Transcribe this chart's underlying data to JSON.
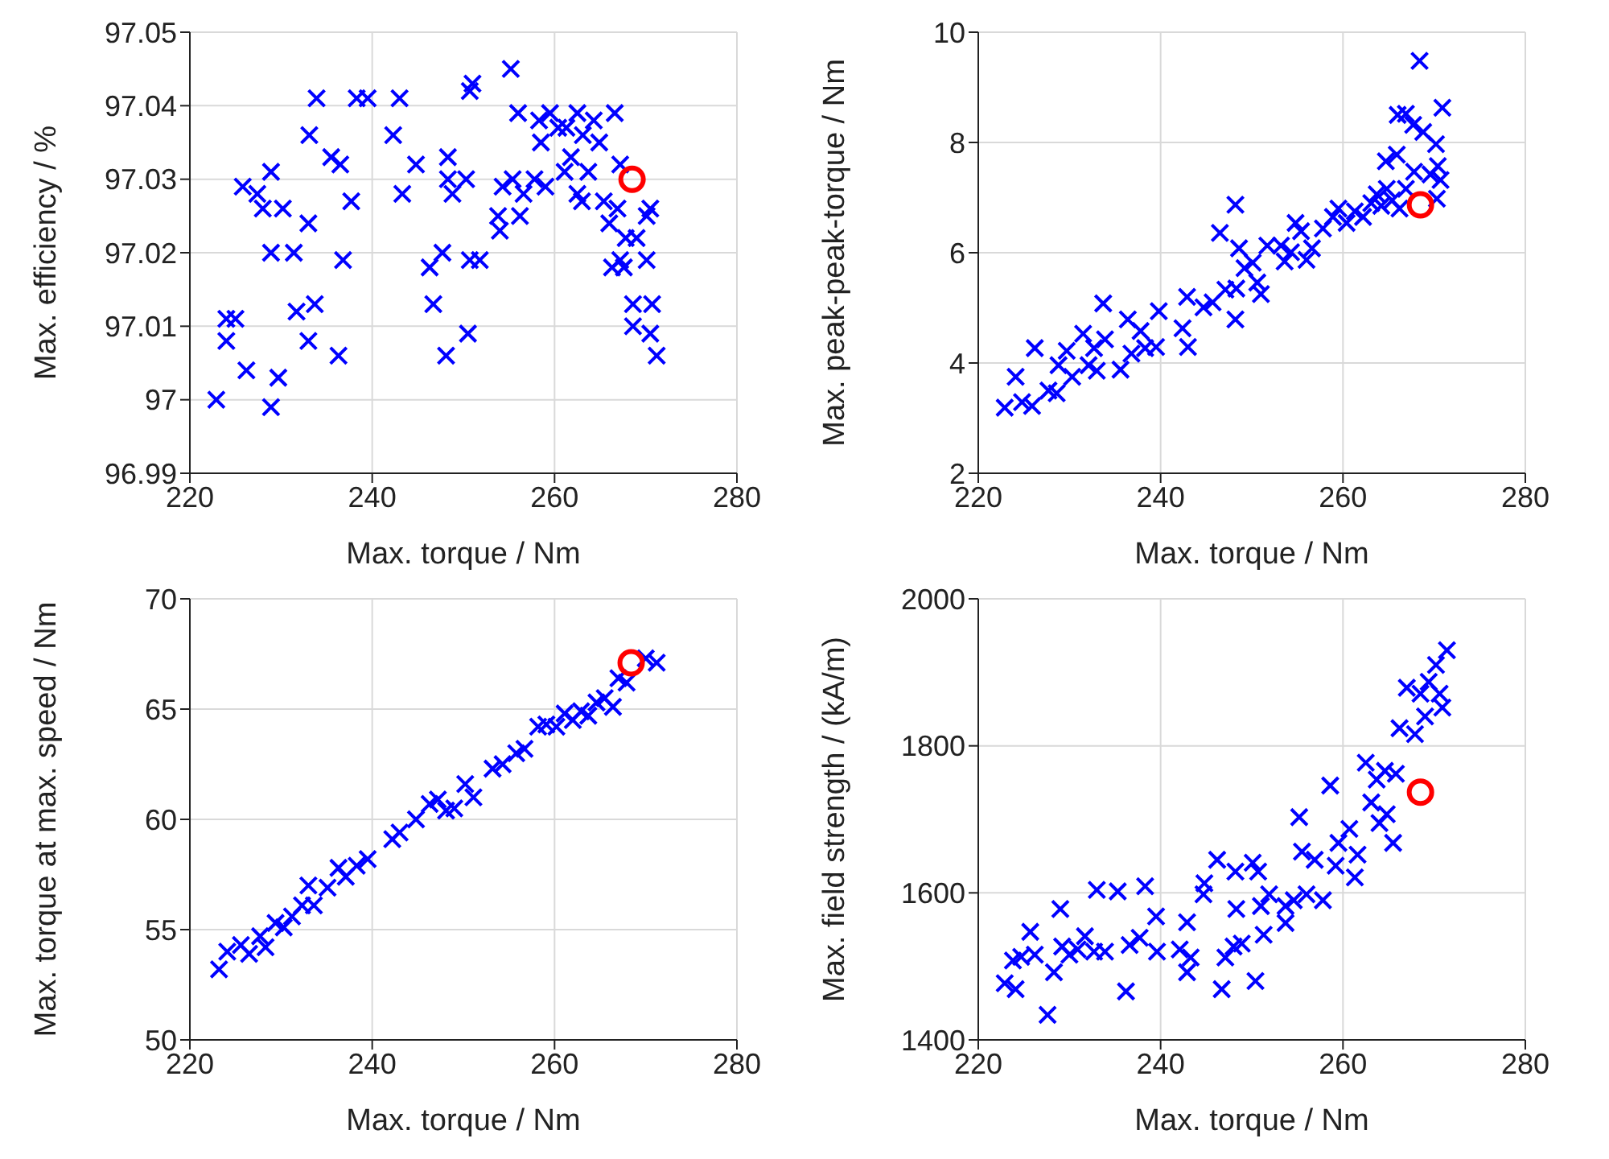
{
  "chart_data": [
    {
      "type": "scatter",
      "xlabel": "Max. torque / Nm",
      "ylabel": "Max. efficiency / %",
      "xlim": [
        220,
        280
      ],
      "xticks": [
        220,
        240,
        260,
        280
      ],
      "ylim": [
        96.99,
        97.05
      ],
      "yticks": [
        96.99,
        97,
        97.01,
        97.02,
        97.03,
        97.04,
        97.05
      ],
      "grid": true,
      "series": [
        {
          "color": "#0000ff",
          "marker": "cross",
          "x": [
            222.9,
            224.0,
            225.0,
            224.0,
            226.2,
            225.8,
            227.4,
            228.0,
            228.9,
            230.2,
            228.9,
            228.9,
            229.7,
            231.4,
            231.7,
            233.0,
            233.0,
            233.1,
            233.7,
            233.9,
            235.5,
            236.5,
            236.3,
            236.8,
            237.7,
            238.3,
            239.5,
            242.3,
            243.0,
            243.3,
            244.8,
            246.3,
            246.7,
            247.7,
            248.3,
            248.3,
            248.8,
            248.1,
            250.3,
            250.5,
            250.7,
            251.8,
            250.7,
            251.0,
            255.2,
            256.0,
            254.3,
            255.4,
            253.8,
            254.0,
            256.2,
            256.6,
            257.8,
            259.0,
            258.5,
            259.5,
            258.3,
            260.4,
            261.3,
            262.5,
            263.1,
            264.3,
            264.9,
            261.1,
            261.8,
            263.7,
            262.5,
            263.0,
            266.6,
            267.2,
            265.4,
            266.9,
            266.0,
            267.8,
            269.0,
            270.5,
            270.1,
            270.1,
            267.2,
            266.3,
            267.6,
            268.6,
            270.7,
            268.6,
            270.5,
            271.2
          ],
          "values": [
            97.0,
            97.011,
            97.011,
            97.008,
            97.004,
            97.029,
            97.028,
            97.026,
            97.031,
            97.026,
            97.02,
            96.999,
            97.003,
            97.02,
            97.012,
            97.008,
            97.024,
            97.036,
            97.013,
            97.041,
            97.033,
            97.032,
            97.006,
            97.019,
            97.027,
            97.041,
            97.041,
            97.036,
            97.041,
            97.028,
            97.032,
            97.018,
            97.013,
            97.02,
            97.033,
            97.03,
            97.028,
            97.006,
            97.03,
            97.009,
            97.019,
            97.019,
            97.042,
            97.043,
            97.045,
            97.039,
            97.029,
            97.03,
            97.025,
            97.023,
            97.025,
            97.028,
            97.03,
            97.029,
            97.035,
            97.039,
            97.038,
            97.037,
            97.037,
            97.039,
            97.036,
            97.038,
            97.035,
            97.031,
            97.033,
            97.031,
            97.028,
            97.027,
            97.039,
            97.032,
            97.027,
            97.026,
            97.024,
            97.022,
            97.022,
            97.026,
            97.025,
            97.019,
            97.019,
            97.018,
            97.018,
            97.013,
            97.013,
            97.01,
            97.009,
            97.006
          ]
        },
        {
          "color": "#ff0000",
          "marker": "circle",
          "x": [
            268.5
          ],
          "values": [
            97.03
          ]
        }
      ]
    },
    {
      "type": "scatter",
      "xlabel": "Max. torque / Nm",
      "ylabel": "Max. peak-peak-torque / Nm",
      "xlim": [
        220,
        280
      ],
      "xticks": [
        220,
        240,
        260,
        280
      ],
      "ylim": [
        2,
        10
      ],
      "yticks": [
        2,
        4,
        6,
        8,
        10
      ],
      "grid": true,
      "series": [
        {
          "color": "#0000ff",
          "marker": "cross",
          "x": [
            222.9,
            224.1,
            224.8,
            225.9,
            226.2,
            227.7,
            228.6,
            228.8,
            229.7,
            230.3,
            231.5,
            232.1,
            233.0,
            232.7,
            233.7,
            233.9,
            235.6,
            236.4,
            236.8,
            237.8,
            238.3,
            239.5,
            239.8,
            242.4,
            242.9,
            243.0,
            244.7,
            245.7,
            246.5,
            247.1,
            248.2,
            248.2,
            248.3,
            248.6,
            249.2,
            250.1,
            250.6,
            251.0,
            251.7,
            253.2,
            253.6,
            254.3,
            254.8,
            255.4,
            256.0,
            256.6,
            257.8,
            258.9,
            259.5,
            260.4,
            261.3,
            262.2,
            263.1,
            263.7,
            264.2,
            264.8,
            265.4,
            264.7,
            265.9,
            266.0,
            266.9,
            267.7,
            266.2,
            266.9,
            267.8,
            268.4,
            268.8,
            270.2,
            270.9,
            269.6,
            270.4,
            270.7,
            270.3
          ],
          "values": [
            3.19,
            3.75,
            3.29,
            3.22,
            4.27,
            3.5,
            3.45,
            3.96,
            4.22,
            3.75,
            4.53,
            3.96,
            3.86,
            4.27,
            5.08,
            4.43,
            3.88,
            4.79,
            4.17,
            4.58,
            4.27,
            4.29,
            4.94,
            4.63,
            5.2,
            4.29,
            5.01,
            5.1,
            6.36,
            5.33,
            6.87,
            4.79,
            5.35,
            6.08,
            5.72,
            5.82,
            5.46,
            5.25,
            6.13,
            6.13,
            5.84,
            6.01,
            6.54,
            6.39,
            5.87,
            6.08,
            6.44,
            6.65,
            6.8,
            6.54,
            6.75,
            6.65,
            6.9,
            7.06,
            6.85,
            7.16,
            6.95,
            7.66,
            7.78,
            8.5,
            8.52,
            8.32,
            6.8,
            7.16,
            7.47,
            9.48,
            8.19,
            7.97,
            8.63,
            7.42,
            7.57,
            7.32,
            6.98
          ]
        },
        {
          "color": "#ff0000",
          "marker": "circle",
          "x": [
            268.5
          ],
          "values": [
            6.87
          ]
        }
      ]
    },
    {
      "type": "scatter",
      "xlabel": "Max. torque / Nm",
      "ylabel": "Max. torque at max. speed / Nm",
      "xlim": [
        220,
        280
      ],
      "xticks": [
        220,
        240,
        260,
        280
      ],
      "ylim": [
        50,
        70
      ],
      "yticks": [
        50,
        55,
        60,
        65,
        70
      ],
      "grid": true,
      "series": [
        {
          "color": "#0000ff",
          "marker": "cross",
          "x": [
            223.2,
            224.1,
            225.6,
            226.5,
            227.7,
            228.3,
            229.4,
            230.3,
            231.2,
            232.3,
            233.0,
            233.6,
            235.1,
            236.3,
            237.1,
            238.3,
            239.5,
            242.2,
            243.0,
            244.8,
            246.3,
            247.2,
            248.1,
            249.0,
            250.2,
            251.1,
            253.2,
            254.3,
            255.8,
            256.7,
            258.2,
            259.1,
            260.2,
            261.1,
            262.0,
            262.9,
            263.7,
            264.6,
            265.5,
            266.4,
            267.0,
            267.9,
            268.8,
            270.0,
            271.2
          ],
          "values": [
            53.2,
            54.0,
            54.3,
            53.9,
            54.7,
            54.2,
            55.3,
            55.1,
            55.6,
            56.1,
            57.0,
            56.1,
            56.9,
            57.8,
            57.4,
            57.9,
            58.2,
            59.1,
            59.4,
            60.0,
            60.7,
            60.9,
            60.4,
            60.5,
            61.6,
            61.0,
            62.3,
            62.5,
            63.0,
            63.2,
            64.2,
            64.3,
            64.2,
            64.8,
            64.5,
            64.9,
            64.7,
            65.3,
            65.5,
            65.1,
            66.4,
            66.2,
            null,
            67.3,
            67.1
          ]
        },
        {
          "color": "#ff0000",
          "marker": "circle",
          "x": [
            268.4
          ],
          "values": [
            67.1
          ]
        }
      ]
    },
    {
      "type": "scatter",
      "xlabel": "Max. torque / Nm",
      "ylabel": "Max. field strength / (kA/m)",
      "xlim": [
        220,
        280
      ],
      "xticks": [
        220,
        240,
        260,
        280
      ],
      "ylim": [
        1400,
        2000
      ],
      "yticks": [
        1400,
        1600,
        1800,
        2000
      ],
      "grid": true,
      "series": [
        {
          "color": "#0000ff",
          "marker": "cross",
          "x": [
            222.9,
            224.1,
            223.8,
            224.7,
            225.7,
            226.2,
            227.6,
            228.3,
            229.0,
            229.2,
            230.0,
            230.9,
            231.7,
            232.7,
            233.0,
            233.9,
            235.3,
            236.2,
            236.6,
            237.7,
            238.3,
            239.5,
            239.6,
            242.1,
            242.9,
            242.9,
            243.3,
            244.7,
            244.8,
            246.2,
            246.7,
            247.1,
            248.0,
            248.3,
            248.2,
            248.9,
            250.1,
            250.4,
            250.7,
            251.0,
            251.3,
            251.9,
            253.7,
            253.7,
            254.6,
            255.2,
            255.5,
            256.0,
            256.9,
            257.8,
            258.6,
            259.2,
            259.5,
            260.7,
            261.3,
            261.6,
            262.5,
            263.1,
            263.7,
            264.0,
            264.8,
            264.6,
            265.5,
            265.8,
            266.2,
            267.0,
            267.9,
            268.5,
            269.0,
            269.4,
            270.6,
            270.9,
            271.4,
            270.2
          ],
          "values": [
            1477,
            1469,
            1508,
            1513,
            1547,
            1516,
            1434,
            1492,
            1578,
            1527,
            1516,
            1523,
            1541,
            1520,
            1604,
            1520,
            1602,
            1466,
            1529,
            1539,
            1609,
            1568,
            1520,
            1523,
            1560,
            1492,
            1512,
            1598,
            1613,
            1645,
            1469,
            1512,
            1527,
            1578,
            1629,
            1531,
            1641,
            1480,
            1629,
            1582,
            1543,
            1598,
            1582,
            1559,
            1590,
            1703,
            1656,
            1598,
            1645,
            1590,
            1746,
            1637,
            1668,
            1687,
            1621,
            1652,
            1777,
            1723,
            1754,
            1695,
            1707,
            1766,
            1668,
            1762,
            1824,
            1879,
            1816,
            1871,
            1840,
            1887,
            1871,
            1852,
            1930,
            1910
          ]
        },
        {
          "color": "#ff0000",
          "marker": "circle",
          "x": [
            268.5
          ],
          "values": [
            1737
          ]
        }
      ]
    }
  ]
}
